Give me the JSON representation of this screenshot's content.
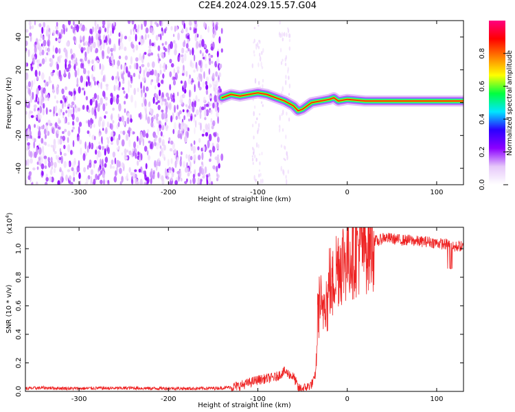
{
  "figure": {
    "title": "C2E4.2024.029.15.57.G04"
  },
  "chart_data": [
    {
      "type": "heatmap",
      "title": "C2E4.2024.029.15.57.G04",
      "xlabel": "Height of straight line (km)",
      "ylabel": "Frequency (Hz)",
      "xlim": [
        -360,
        130
      ],
      "ylim": [
        -50,
        50
      ],
      "x_ticks": [
        -300,
        -200,
        -100,
        0,
        100
      ],
      "x_tick_labels": [
        "-300",
        "-200",
        "-100",
        "0",
        "100"
      ],
      "y_ticks": [
        -40,
        -20,
        0,
        20,
        40
      ],
      "y_tick_labels": [
        "-40",
        "-20",
        "0",
        "20",
        "40"
      ],
      "colorbar": {
        "label": "Normalized spectral amplitude",
        "range": [
          0,
          1
        ],
        "ticks": [
          0.0,
          0.2,
          0.4,
          0.6,
          0.8
        ],
        "tick_labels": [
          "0.0",
          "0.2",
          "0.4",
          "0.6",
          "0.8"
        ],
        "colormap": [
          "#ffffff",
          "#e6c8fa",
          "#8c00ff",
          "#2b00ff",
          "#00e6ff",
          "#00ff40",
          "#ffff00",
          "#ff8000",
          "#ff0000",
          "#ff0080"
        ]
      },
      "noise_region_x": [
        -360,
        -140
      ],
      "sparse_columns_x": [
        -100,
        -70
      ],
      "doppler_track": {
        "x": [
          -140,
          -130,
          -120,
          -110,
          -100,
          -90,
          -80,
          -70,
          -60,
          -55,
          -50,
          -45,
          -40,
          -30,
          -20,
          -15,
          -10,
          0,
          20,
          50,
          100,
          130
        ],
        "y": [
          3,
          5,
          4,
          5,
          6,
          5,
          3,
          1,
          -2,
          -5,
          -4,
          -2,
          0,
          1,
          2,
          3,
          1,
          2,
          1,
          1,
          1,
          1
        ]
      },
      "grid": false
    },
    {
      "type": "line",
      "xlabel": "Height of straight line (km)",
      "ylabel": "SNR (10 * v/v)",
      "y_multiplier_label": "(x10",
      "y_multiplier_exponent": "4",
      "y_multiplier_close": ")",
      "xlim": [
        -360,
        130
      ],
      "ylim": [
        0.0,
        1.15
      ],
      "x_ticks": [
        -300,
        -200,
        -100,
        0,
        100
      ],
      "x_tick_labels": [
        "-300",
        "-200",
        "-100",
        "0",
        "100"
      ],
      "y_ticks": [
        0.0,
        0.2,
        0.4,
        0.6,
        0.8,
        1.0
      ],
      "y_tick_labels": [
        "0.0",
        "0.2",
        "0.4",
        "0.6",
        "0.8",
        "1.0"
      ],
      "line_color": "#ee2222",
      "series": [
        {
          "x": [
            -360,
            -340,
            -320,
            -300,
            -280,
            -260,
            -240,
            -220,
            -200,
            -180,
            -160,
            -140,
            -130,
            -120,
            -110,
            -100,
            -90,
            -80,
            -75,
            -70,
            -65,
            -60,
            -57,
            -55,
            -50,
            -45,
            -40,
            -37,
            -35,
            -33,
            -30,
            -28,
            -25,
            -22,
            -20,
            -17,
            -15,
            -10,
            -5,
            0,
            5,
            10,
            15,
            20,
            25,
            30,
            35,
            40,
            50,
            60,
            70,
            80,
            90,
            100,
            110,
            115,
            118,
            120,
            125,
            130
          ],
          "y": [
            0.02,
            0.025,
            0.022,
            0.02,
            0.023,
            0.022,
            0.024,
            0.021,
            0.022,
            0.02,
            0.021,
            0.024,
            0.03,
            0.04,
            0.06,
            0.08,
            0.09,
            0.1,
            0.12,
            0.14,
            0.12,
            0.1,
            0.06,
            0.02,
            0.02,
            0.03,
            0.05,
            0.08,
            0.15,
            0.55,
            0.65,
            0.5,
            0.72,
            0.6,
            0.8,
            0.7,
            0.82,
            0.9,
            0.92,
            0.95,
            0.98,
            1.0,
            1.02,
            1.03,
            1.05,
            1.06,
            1.05,
            1.08,
            1.07,
            1.06,
            1.06,
            1.05,
            1.05,
            1.04,
            1.03,
            1.03,
            1.01,
            1.01,
            1.02,
            1.01
          ]
        }
      ],
      "grid": false
    }
  ]
}
